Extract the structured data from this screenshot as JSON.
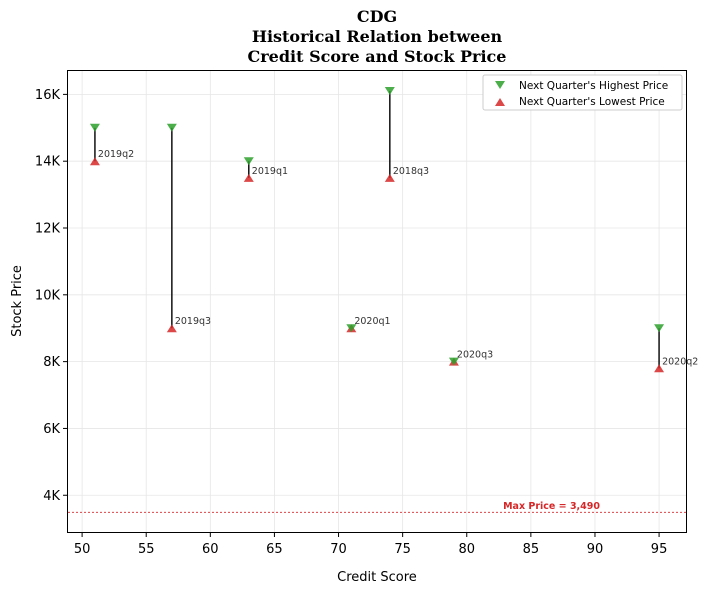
{
  "chart_data": {
    "type": "scatter",
    "title_lines": [
      "CDG",
      "Historical Relation between",
      "Credit Score and Stock Price"
    ],
    "xlabel": "Credit Score",
    "ylabel": "Stock Price",
    "xlim": [
      48.9,
      97.1
    ],
    "ylim": [
      2900,
      16700
    ],
    "xticks": [
      50,
      55,
      60,
      65,
      70,
      75,
      80,
      85,
      90,
      95
    ],
    "xtick_labels": [
      "50",
      "55",
      "60",
      "65",
      "70",
      "75",
      "80",
      "85",
      "90",
      "95"
    ],
    "yticks": [
      4000,
      6000,
      8000,
      10000,
      12000,
      14000,
      16000
    ],
    "ytick_labels": [
      "4K",
      "6K",
      "8K",
      "10K",
      "12K",
      "14K",
      "16K"
    ],
    "grid": true,
    "legend_position": "top-right",
    "series": [
      {
        "name": "Next Quarter's Highest Price",
        "marker": "triangle-down",
        "color": "#2ca02c"
      },
      {
        "name": "Next Quarter's Lowest Price",
        "marker": "triangle-up",
        "color": "#d62728"
      }
    ],
    "points": [
      {
        "label": "2019q2",
        "x": 51,
        "high": 15000,
        "low": 14000
      },
      {
        "label": "2019q3",
        "x": 57,
        "high": 15000,
        "low": 9000
      },
      {
        "label": "2019q1",
        "x": 63,
        "high": 14000,
        "low": 13500
      },
      {
        "label": "2018q3",
        "x": 74,
        "high": 16100,
        "low": 13500
      },
      {
        "label": "2020q1",
        "x": 71,
        "high": 9000,
        "low": 9000
      },
      {
        "label": "2020q3",
        "x": 79,
        "high": 8000,
        "low": 8000
      },
      {
        "label": "2020q2",
        "x": 95,
        "high": 9000,
        "low": 7800
      }
    ],
    "reference_line": {
      "value": 3490,
      "label": "Max Price = 3,490",
      "color": "#d62728"
    }
  }
}
